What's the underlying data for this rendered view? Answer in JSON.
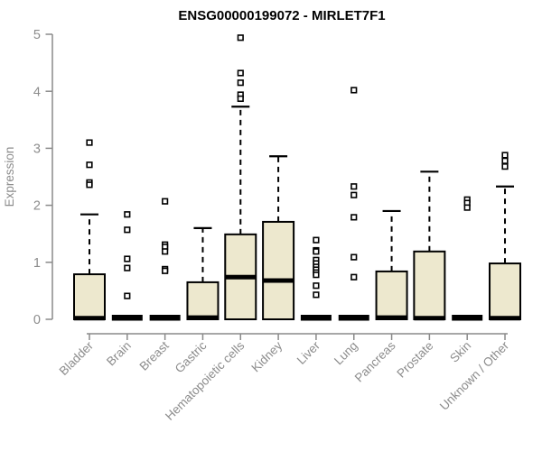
{
  "header": {
    "title": "ENSG00000199072 - MIRLET7F1"
  },
  "chart_data": {
    "type": "boxplot",
    "title": "ENSG00000199072 - MIRLET7F1",
    "xlabel": "",
    "ylabel": "Expression",
    "ylim": [
      0,
      5
    ],
    "yticks": [
      0,
      1,
      2,
      3,
      4,
      5
    ],
    "grid": false,
    "legend": "none",
    "categories": [
      "Bladder",
      "Brain",
      "Breast",
      "Gastric",
      "Hematopoietic cells",
      "Kidney",
      "Liver",
      "Lung",
      "Pancreas",
      "Prostate",
      "Skin",
      "Unknown / Other"
    ],
    "series": [
      {
        "name": "Bladder",
        "q1": 0,
        "median": 0.02,
        "q3": 0.79,
        "whisker_low": 0,
        "whisker_high": 1.84,
        "outliers": [
          3.1,
          2.71,
          2.4,
          2.36
        ]
      },
      {
        "name": "Brain",
        "q1": 0,
        "median": 0,
        "q3": 0,
        "whisker_low": 0,
        "whisker_high": 0,
        "outliers": [
          1.84,
          1.57,
          1.06,
          0.9,
          0.41
        ]
      },
      {
        "name": "Breast",
        "q1": 0,
        "median": 0,
        "q3": 0,
        "whisker_low": 0,
        "whisker_high": 0,
        "outliers": [
          2.07,
          1.31,
          1.27,
          1.19,
          0.88,
          0.85
        ]
      },
      {
        "name": "Gastric",
        "q1": 0,
        "median": 0.03,
        "q3": 0.65,
        "whisker_low": 0,
        "whisker_high": 1.6,
        "outliers": []
      },
      {
        "name": "Hematopoietic cells",
        "q1": 0,
        "median": 0.74,
        "q3": 1.49,
        "whisker_low": 0,
        "whisker_high": 3.73,
        "outliers": [
          4.94,
          4.32,
          4.15,
          3.94,
          3.87
        ]
      },
      {
        "name": "Kidney",
        "q1": 0,
        "median": 0.68,
        "q3": 1.71,
        "whisker_low": 0,
        "whisker_high": 2.86,
        "outliers": []
      },
      {
        "name": "Liver",
        "q1": 0,
        "median": 0,
        "q3": 0,
        "whisker_low": 0,
        "whisker_high": 0,
        "outliers": [
          1.39,
          1.21,
          1.19,
          1.04,
          0.98,
          0.92,
          0.87,
          0.82,
          0.78,
          0.59,
          0.43
        ]
      },
      {
        "name": "Lung",
        "q1": 0,
        "median": 0,
        "q3": 0,
        "whisker_low": 0,
        "whisker_high": 0,
        "outliers": [
          4.02,
          2.33,
          2.18,
          1.79,
          1.09,
          0.74
        ]
      },
      {
        "name": "Pancreas",
        "q1": 0,
        "median": 0.03,
        "q3": 0.84,
        "whisker_low": 0,
        "whisker_high": 1.9,
        "outliers": []
      },
      {
        "name": "Prostate",
        "q1": 0,
        "median": 0.02,
        "q3": 1.19,
        "whisker_low": 0,
        "whisker_high": 2.59,
        "outliers": []
      },
      {
        "name": "Skin",
        "q1": 0,
        "median": 0,
        "q3": 0,
        "whisker_low": 0,
        "whisker_high": 0,
        "outliers": [
          2.1,
          2.04,
          1.96
        ]
      },
      {
        "name": "Unknown / Other",
        "q1": 0,
        "median": 0.02,
        "q3": 0.98,
        "whisker_low": 0,
        "whisker_high": 2.33,
        "outliers": [
          2.88,
          2.78,
          2.68
        ]
      }
    ],
    "colors": {
      "box_fill": "#EDE8CE",
      "box_stroke": "#000000",
      "median": "#000000",
      "whisker": "#000000",
      "outlier_stroke": "#000000",
      "outlier_fill": "#FFFFFF",
      "axis": "#8A8A8A",
      "tick_text": "#8C8C8C",
      "title_text": "#000000",
      "background": "#FFFFFF"
    }
  }
}
